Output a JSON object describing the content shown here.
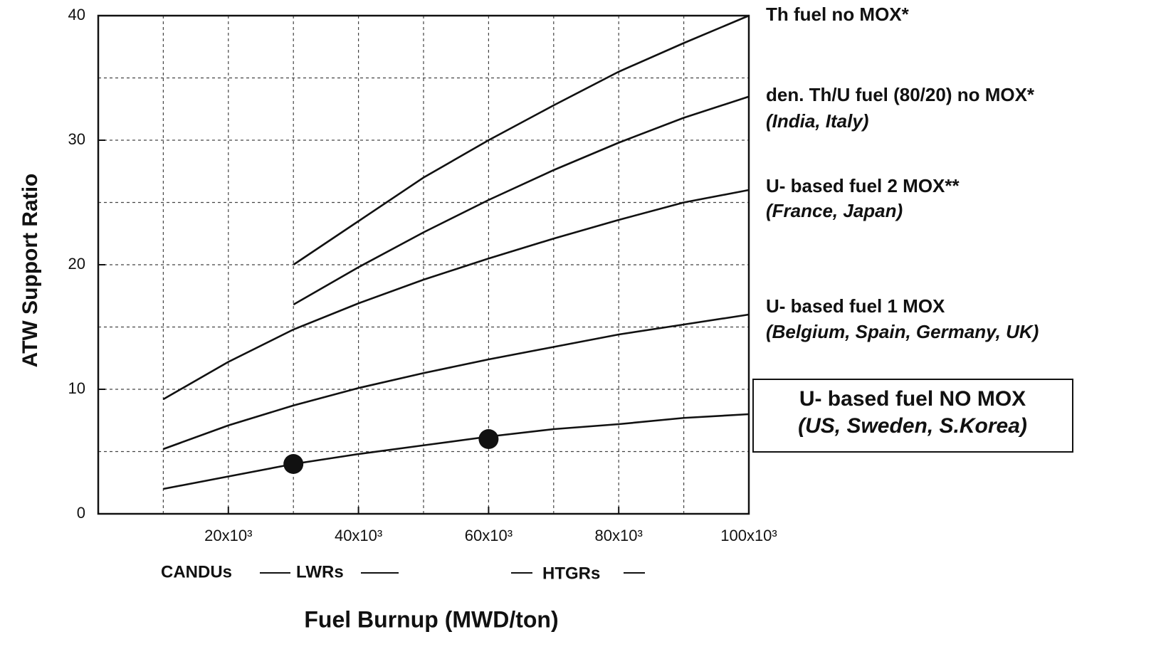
{
  "chart_data": {
    "type": "line",
    "xlabel": "Fuel Burnup (MWD/ton)",
    "ylabel": "ATW Support Ratio",
    "xlim": [
      0,
      100000
    ],
    "ylim": [
      0,
      40
    ],
    "xticks": [
      {
        "value": 20000,
        "label": "20x10³"
      },
      {
        "value": 40000,
        "label": "40x10³"
      },
      {
        "value": 60000,
        "label": "60x10³"
      },
      {
        "value": 80000,
        "label": "80x10³"
      },
      {
        "value": 100000,
        "label": "100x10³"
      }
    ],
    "yticks": [
      0,
      10,
      20,
      30,
      40
    ],
    "xminor": [
      10000,
      30000,
      50000,
      70000,
      90000
    ],
    "yminor": [
      5,
      15,
      25,
      35
    ],
    "grid": true,
    "series": [
      {
        "name": "Th fuel  no MOX*",
        "color": "#111111",
        "x": [
          30000,
          40000,
          50000,
          60000,
          70000,
          80000,
          90000,
          100000
        ],
        "values": [
          20,
          23.5,
          27,
          30,
          32.8,
          35.5,
          37.8,
          40
        ]
      },
      {
        "name": "den. Th/U fuel (80/20) no MOX*",
        "note": "(India, Italy)",
        "color": "#111111",
        "x": [
          30000,
          40000,
          50000,
          60000,
          70000,
          80000,
          90000,
          100000
        ],
        "values": [
          16.8,
          19.8,
          22.6,
          25.2,
          27.6,
          29.8,
          31.8,
          33.5
        ]
      },
      {
        "name": "U- based fuel  2 MOX**",
        "note": "(France, Japan)",
        "color": "#111111",
        "x": [
          10000,
          20000,
          30000,
          40000,
          50000,
          60000,
          70000,
          80000,
          90000,
          100000
        ],
        "values": [
          9.2,
          12.2,
          14.8,
          16.9,
          18.8,
          20.5,
          22.1,
          23.6,
          25,
          26
        ]
      },
      {
        "name": "U- based fuel  1 MOX",
        "note": "(Belgium, Spain, Germany, UK)",
        "color": "#111111",
        "x": [
          10000,
          20000,
          30000,
          40000,
          50000,
          60000,
          70000,
          80000,
          90000,
          100000
        ],
        "values": [
          5.2,
          7.1,
          8.7,
          10.1,
          11.3,
          12.4,
          13.4,
          14.4,
          15.2,
          16
        ]
      },
      {
        "name": "U- based fuel NO MOX",
        "note": "(US, Sweden, S.Korea)",
        "color": "#111111",
        "x": [
          10000,
          20000,
          30000,
          40000,
          50000,
          60000,
          70000,
          80000,
          90000,
          100000
        ],
        "values": [
          2,
          3,
          4,
          4.8,
          5.5,
          6.2,
          6.8,
          7.2,
          7.7,
          8
        ]
      }
    ],
    "markers": {
      "x": [
        30000,
        60000
      ],
      "values": [
        4,
        6
      ]
    },
    "reactor_labels": [
      "CANDUs",
      "LWRs",
      "HTGRs"
    ]
  }
}
